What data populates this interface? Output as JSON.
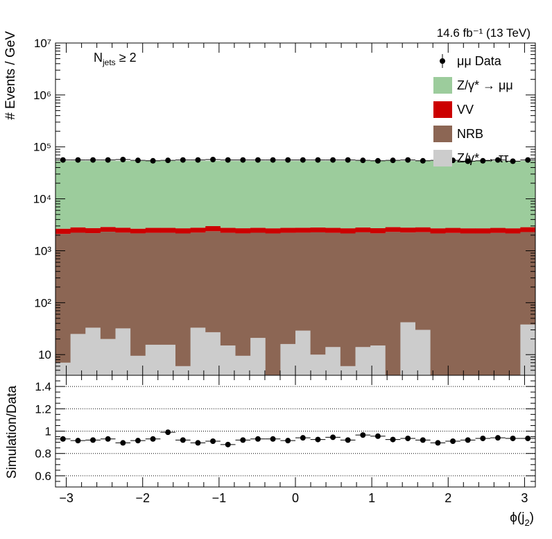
{
  "lumi_label": "14.6 fb⁻¹ (13 TeV)",
  "selection_label": "N_jets ≥ 2",
  "colors": {
    "zmm": "#9ccc9c",
    "vv": "#cc0000",
    "nrb": "#8c6654",
    "ztt": "#cccccc",
    "data": "#000000"
  },
  "chart_data": [
    {
      "type": "bar",
      "stacked": true,
      "log_y": true,
      "ylabel": "# Events / GeV",
      "xlim": [
        -3.1416,
        3.1416
      ],
      "ylim": [
        4,
        10000000
      ],
      "y_ticks": [
        10,
        100,
        1000,
        10000,
        100000,
        1000000,
        10000000
      ],
      "y_tick_labels": [
        "10",
        "10²",
        "10³",
        "10⁴",
        "10⁵",
        "10⁶",
        "10⁷"
      ],
      "legend_position": "top-right",
      "n_bins": 32,
      "series": [
        {
          "name": "Z/γ* → ττ",
          "color_key": "ztt",
          "values": [
            7,
            25,
            33,
            20,
            32,
            9.5,
            15.5,
            15.5,
            6,
            33,
            27,
            15,
            9.5,
            21,
            3,
            16,
            29,
            10,
            14,
            6,
            14,
            15,
            4,
            42,
            30,
            3,
            3,
            3,
            3,
            3,
            3,
            38
          ]
        },
        {
          "name": "NRB",
          "color_key": "nrb",
          "values": [
            2100,
            2200,
            2150,
            2300,
            2200,
            2150,
            2200,
            2200,
            2150,
            2200,
            2350,
            2200,
            2150,
            2200,
            2150,
            2200,
            2200,
            2250,
            2200,
            2150,
            2250,
            2150,
            2300,
            2200,
            2250,
            2150,
            2200,
            2150,
            2150,
            2200,
            2150,
            2250
          ]
        },
        {
          "name": "VV",
          "color_key": "vv",
          "values": [
            550,
            600,
            550,
            550,
            550,
            500,
            550,
            550,
            550,
            550,
            600,
            550,
            550,
            550,
            550,
            550,
            550,
            550,
            550,
            550,
            550,
            550,
            550,
            550,
            550,
            550,
            550,
            550,
            550,
            550,
            550,
            550
          ]
        },
        {
          "name": "Z/γ* → μμ",
          "color_key": "zmm",
          "values": [
            51000,
            51000,
            51000,
            51000,
            51000,
            51000,
            51000,
            51000,
            51000,
            51000,
            51000,
            51000,
            51000,
            51000,
            51000,
            51000,
            51000,
            51000,
            51000,
            51000,
            51000,
            51000,
            51000,
            51000,
            51000,
            51000,
            51000,
            51000,
            51000,
            51000,
            51000,
            51000
          ]
        },
        {
          "name": "μμ Data",
          "color_key": "data",
          "marker": "point",
          "values": [
            56000,
            56000,
            56000,
            56000,
            57000,
            55000,
            54000,
            55000,
            56000,
            56000,
            57000,
            56000,
            56000,
            56000,
            56000,
            56000,
            56000,
            56000,
            56000,
            56000,
            55000,
            54000,
            55000,
            56000,
            54000,
            55000,
            55000,
            53000,
            54000,
            56000,
            53000,
            56000
          ]
        }
      ]
    },
    {
      "type": "scatter",
      "xlabel": "ϕ(j₂)",
      "ylabel": "Simulation/Data",
      "xlim": [
        -3.1416,
        3.1416
      ],
      "ylim": [
        0.5,
        1.5
      ],
      "x_ticks": [
        -3,
        -2,
        -1,
        0,
        1,
        2,
        3
      ],
      "x_tick_labels": [
        "−3",
        "−2",
        "−1",
        "0",
        "1",
        "2",
        "3"
      ],
      "y_ticks": [
        0.6,
        0.8,
        1.0,
        1.2,
        1.4
      ],
      "y_tick_labels": [
        "0.6",
        "0.8",
        "1",
        "1.2",
        "1.4"
      ],
      "grid_y": [
        0.6,
        0.8,
        1.0,
        1.2,
        1.4
      ],
      "values": [
        0.93,
        0.915,
        0.92,
        0.93,
        0.895,
        0.915,
        0.93,
        0.99,
        0.92,
        0.895,
        0.91,
        0.88,
        0.92,
        0.93,
        0.93,
        0.915,
        0.94,
        0.925,
        0.945,
        0.92,
        0.965,
        0.955,
        0.925,
        0.935,
        0.92,
        0.895,
        0.91,
        0.92,
        0.935,
        0.94,
        0.935,
        0.935
      ]
    }
  ]
}
